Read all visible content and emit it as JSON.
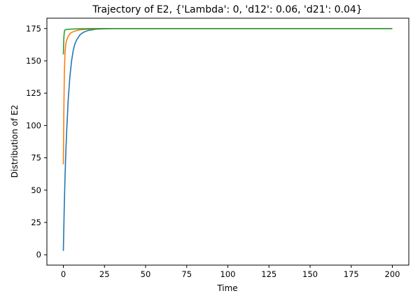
{
  "chart_data": {
    "type": "line",
    "title": "Trajectory of E2, {'Lambda': 0, 'd12': 0.06, 'd21': 0.04}",
    "xlabel": "Time",
    "ylabel": "Distribution of E2",
    "xlim": [
      -10,
      210
    ],
    "ylim": [
      -8,
      183
    ],
    "xticks": [
      0,
      25,
      50,
      75,
      100,
      125,
      150,
      175,
      200
    ],
    "yticks": [
      0,
      25,
      50,
      75,
      100,
      125,
      150,
      175
    ],
    "grid": false,
    "legend": "none",
    "series": [
      {
        "color": "#1f77b4",
        "x": [
          0,
          0.5,
          1,
          1.5,
          2,
          3,
          4,
          5,
          6,
          7,
          8,
          10,
          12,
          15,
          20,
          25,
          30,
          40,
          50,
          75,
          100,
          150,
          200
        ],
        "y": [
          3,
          34,
          59,
          79,
          95,
          121,
          138,
          150,
          158,
          163,
          166,
          170,
          172,
          173.5,
          174.5,
          174.8,
          175,
          175,
          175,
          175,
          175,
          175,
          175
        ]
      },
      {
        "color": "#ff7f0e",
        "x": [
          0,
          0.3,
          0.6,
          1,
          1.5,
          2,
          3,
          4,
          5,
          7,
          10,
          15,
          20,
          25,
          30,
          40,
          50,
          100,
          150,
          200
        ],
        "y": [
          70,
          110,
          140,
          156,
          163,
          166,
          169,
          171,
          172,
          173,
          174,
          174.5,
          174.8,
          175,
          175,
          175,
          175,
          175,
          175,
          175
        ]
      },
      {
        "color": "#2ca02c",
        "x": [
          0,
          0.3,
          0.6,
          1,
          2,
          5,
          10,
          20,
          30,
          50,
          100,
          150,
          200
        ],
        "y": [
          155,
          168,
          172.5,
          174,
          174.3,
          174.6,
          174.8,
          175,
          175,
          175,
          175,
          175,
          175
        ]
      }
    ]
  }
}
